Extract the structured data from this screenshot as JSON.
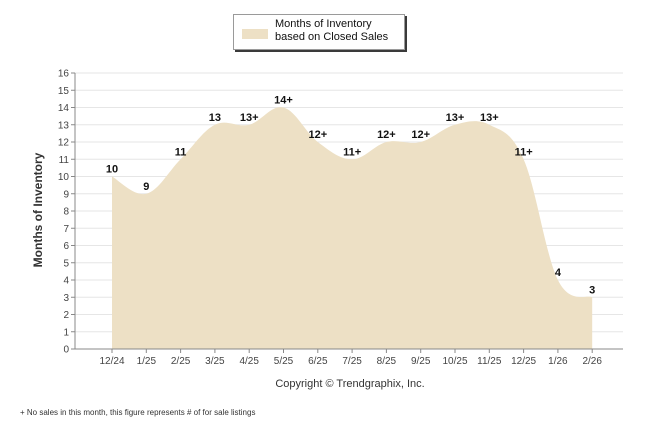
{
  "legend": {
    "label": "Months of Inventory based on Closed Sales",
    "color": "#ede0c5"
  },
  "credit": "Copyright © Trendgraphix, Inc.",
  "footnote": "+  No sales in this month, this figure represents # of for sale listings",
  "chart_data": {
    "type": "area",
    "title": "",
    "ylabel": "Months of Inventory",
    "xlabel": "",
    "ylim": [
      0,
      16
    ],
    "yticks": [
      0,
      1,
      2,
      3,
      4,
      5,
      6,
      7,
      8,
      9,
      10,
      11,
      12,
      13,
      14,
      15,
      16
    ],
    "grid": true,
    "legend_position": "top",
    "categories": [
      "12/24",
      "1/25",
      "2/25",
      "3/25",
      "4/25",
      "5/25",
      "6/25",
      "7/25",
      "8/25",
      "9/25",
      "10/25",
      "11/25",
      "12/25",
      "1/26",
      "2/26"
    ],
    "series": [
      {
        "name": "Months of Inventory based on Closed Sales",
        "color": "#ede0c5",
        "values": [
          10,
          9,
          11,
          13,
          13,
          14,
          12,
          11,
          12,
          12,
          13,
          13,
          11,
          4,
          3
        ],
        "labels": [
          "10",
          "9",
          "11",
          "13",
          "13+",
          "14+",
          "12+",
          "11+",
          "12+",
          "12+",
          "13+",
          "13+",
          "11+",
          "4",
          "3"
        ]
      }
    ]
  }
}
